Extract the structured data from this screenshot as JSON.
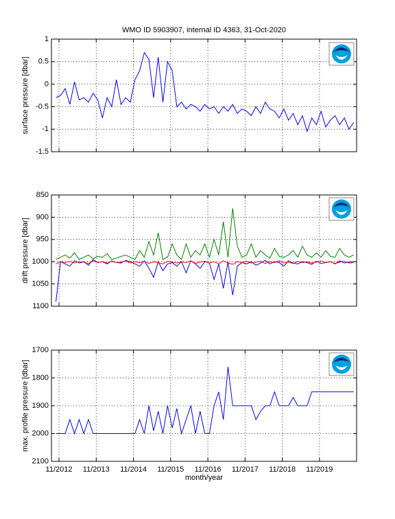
{
  "chart_data": [
    {
      "type": "line",
      "title": "WMO ID 5903907, internal ID 4363, 31-Oct-2020",
      "ylabel": "surface pressure [dbar]",
      "x": [
        2012.75,
        2012.875,
        2013,
        2013.125,
        2013.25,
        2013.375,
        2013.5,
        2013.625,
        2013.75,
        2013.875,
        2014,
        2014.125,
        2014.25,
        2014.375,
        2014.5,
        2014.625,
        2014.75,
        2014.875,
        2015,
        2015.125,
        2015.25,
        2015.375,
        2015.5,
        2015.625,
        2015.75,
        2015.875,
        2016,
        2016.125,
        2016.25,
        2016.375,
        2016.5,
        2016.625,
        2016.75,
        2016.875,
        2017,
        2017.125,
        2017.25,
        2017.375,
        2017.5,
        2017.625,
        2017.75,
        2017.875,
        2018,
        2018.125,
        2018.25,
        2018.375,
        2018.5,
        2018.625,
        2018.75,
        2018.875,
        2019,
        2019.125,
        2019.25,
        2019.375,
        2019.5,
        2019.625,
        2019.75,
        2019.875,
        2020,
        2020.125,
        2020.25,
        2020.375,
        2020.5,
        2020.625,
        2020.75
      ],
      "series": [
        {
          "color": "#0000ff",
          "values": [
            -0.3,
            -0.25,
            -0.1,
            -0.45,
            0.05,
            -0.35,
            -0.3,
            -0.4,
            -0.2,
            -0.35,
            -0.75,
            -0.3,
            -0.5,
            0.1,
            -0.45,
            -0.3,
            -0.4,
            0.1,
            0.3,
            0.7,
            0.55,
            -0.3,
            0.6,
            -0.4,
            0.5,
            0.3,
            -0.5,
            -0.4,
            -0.55,
            -0.45,
            -0.5,
            -0.6,
            -0.45,
            -0.55,
            -0.5,
            -0.65,
            -0.5,
            -0.6,
            -0.45,
            -0.65,
            -0.55,
            -0.6,
            -0.7,
            -0.5,
            -0.65,
            -0.4,
            -0.55,
            -0.6,
            -0.75,
            -0.55,
            -0.8,
            -0.65,
            -0.9,
            -0.7,
            -1.05,
            -0.75,
            -0.9,
            -0.6,
            -0.95,
            -0.8,
            -0.7,
            -0.9,
            -0.75,
            -1.0,
            -0.85
          ]
        }
      ],
      "xlim": [
        2012.63,
        2020.83
      ],
      "xticks": [
        2012.833,
        2013.833,
        2014.833,
        2015.833,
        2016.833,
        2017.833,
        2018.833,
        2019.833
      ],
      "ylim": [
        -1.5,
        1
      ],
      "yticks": [
        -1.5,
        -1,
        -0.5,
        0,
        0.5,
        1
      ],
      "y_reversed": false,
      "grid": true
    },
    {
      "type": "line",
      "ylabel": "drift pressure [dbar]",
      "x": [
        2012.75,
        2012.875,
        2013,
        2013.125,
        2013.25,
        2013.375,
        2013.5,
        2013.625,
        2013.75,
        2013.875,
        2014,
        2014.125,
        2014.25,
        2014.375,
        2014.5,
        2014.625,
        2014.75,
        2014.875,
        2015,
        2015.125,
        2015.25,
        2015.375,
        2015.5,
        2015.625,
        2015.75,
        2015.875,
        2016,
        2016.125,
        2016.25,
        2016.375,
        2016.5,
        2016.625,
        2016.75,
        2016.875,
        2017,
        2017.125,
        2017.25,
        2017.375,
        2017.5,
        2017.625,
        2017.75,
        2017.875,
        2018,
        2018.125,
        2018.25,
        2018.375,
        2018.5,
        2018.625,
        2018.75,
        2018.875,
        2019,
        2019.125,
        2019.25,
        2019.375,
        2019.5,
        2019.625,
        2019.75,
        2019.875,
        2020,
        2020.125,
        2020.25,
        2020.375,
        2020.5,
        2020.625,
        2020.75
      ],
      "series": [
        {
          "color": "#0000ff",
          "values": [
            1090,
            1000,
            1005,
            1010,
            998,
            1003,
            1000,
            1008,
            995,
            1002,
            1000,
            1005,
            998,
            1002,
            1003,
            997,
            1000,
            1005,
            1010,
            998,
            1015,
            1035,
            1000,
            1020,
            1005,
            1002,
            1010,
            1000,
            1025,
            998,
            1005,
            1015,
            1000,
            1003,
            1040,
            1005,
            1060,
            1000,
            1075,
            1010,
            1002,
            1005,
            1000,
            1008,
            1003,
            997,
            1005,
            1000,
            1002,
            1010,
            998,
            1003,
            1005,
            1000,
            1002,
            1006,
            999,
            1004,
            1002,
            1000,
            1005,
            998,
            1003,
            1001,
            1000
          ]
        },
        {
          "color": "#008000",
          "values": [
            995,
            990,
            985,
            992,
            980,
            995,
            990,
            985,
            993,
            988,
            990,
            982,
            995,
            992,
            988,
            985,
            990,
            995,
            975,
            990,
            955,
            985,
            935,
            995,
            990,
            960,
            985,
            995,
            960,
            990,
            975,
            985,
            960,
            990,
            950,
            985,
            910,
            990,
            880,
            965,
            990,
            985,
            960,
            990,
            975,
            985,
            992,
            970,
            988,
            990,
            985,
            975,
            990,
            965,
            985,
            990,
            980,
            990,
            975,
            988,
            990,
            970,
            985,
            990,
            985
          ]
        },
        {
          "color": "#ff0000",
          "values": [
            1005,
            1000,
            1002,
            999,
            1003,
            1000,
            1001,
            1004,
            998,
            1002,
            1000,
            1003,
            999,
            1002,
            1001,
            998,
            1003,
            1000,
            1002,
            999,
            1004,
            1000,
            1002,
            1005,
            999,
            1001,
            1003,
            1000,
            1002,
            998,
            1004,
            1001,
            999,
            1003,
            1000,
            1005,
            998,
            1003,
            1006,
            1000,
            1002,
            999,
            1003,
            1001,
            999,
            1004,
            1000,
            1002,
            998,
            1003,
            1001,
            1004,
            999,
            1002,
            1000,
            1003,
            1001,
            998,
            1002,
            1000,
            1004,
            1001,
            999,
            1003,
            1002
          ]
        }
      ],
      "xlim": [
        2012.63,
        2020.83
      ],
      "xticks": [
        2012.833,
        2013.833,
        2014.833,
        2015.833,
        2016.833,
        2017.833,
        2018.833,
        2019.833
      ],
      "ylim": [
        850,
        1100
      ],
      "yticks": [
        850,
        900,
        950,
        1000,
        1050,
        1100
      ],
      "y_reversed": true,
      "grid": true
    },
    {
      "type": "line",
      "ylabel": "max. profile pressure [dbar]",
      "xlabel": "month/year",
      "x": [
        2012.75,
        2012.875,
        2013,
        2013.125,
        2013.25,
        2013.375,
        2013.5,
        2013.625,
        2013.75,
        2013.875,
        2014,
        2014.125,
        2014.25,
        2014.375,
        2014.5,
        2014.625,
        2014.75,
        2014.875,
        2015,
        2015.125,
        2015.25,
        2015.375,
        2015.5,
        2015.625,
        2015.75,
        2015.875,
        2016,
        2016.125,
        2016.25,
        2016.375,
        2016.5,
        2016.625,
        2016.75,
        2016.875,
        2017,
        2017.125,
        2017.25,
        2017.375,
        2017.5,
        2017.625,
        2017.75,
        2017.875,
        2018,
        2018.125,
        2018.25,
        2018.375,
        2018.5,
        2018.625,
        2018.75,
        2018.875,
        2019,
        2019.125,
        2019.25,
        2019.375,
        2019.5,
        2019.625,
        2019.75,
        2019.875,
        2020,
        2020.125,
        2020.25,
        2020.375,
        2020.5,
        2020.625,
        2020.75
      ],
      "series": [
        {
          "color": "#0000ff",
          "values": [
            2000,
            2000,
            2000,
            1950,
            2000,
            1950,
            2000,
            1950,
            2000,
            2000,
            2000,
            2000,
            2000,
            2000,
            2000,
            2000,
            2000,
            2000,
            1950,
            2000,
            1900,
            1990,
            1920,
            2000,
            1900,
            1980,
            1910,
            2000,
            1950,
            1900,
            2000,
            1920,
            2000,
            2000,
            1900,
            1850,
            1950,
            1760,
            1900,
            1900,
            1900,
            1900,
            1900,
            1950,
            1920,
            1900,
            1900,
            1850,
            1900,
            1900,
            1900,
            1870,
            1900,
            1900,
            1900,
            1850,
            1850,
            1850,
            1850,
            1850,
            1850,
            1850,
            1850,
            1850,
            1850
          ]
        }
      ],
      "xlim": [
        2012.63,
        2020.83
      ],
      "xticks": [
        {
          "value": 2012.833,
          "label": "11/2012"
        },
        {
          "value": 2013.833,
          "label": "11/2013"
        },
        {
          "value": 2014.833,
          "label": "11/2014"
        },
        {
          "value": 2015.833,
          "label": "11/2015"
        },
        {
          "value": 2016.833,
          "label": "11/2016"
        },
        {
          "value": 2017.833,
          "label": "11/2017"
        },
        {
          "value": 2018.833,
          "label": "11/2018"
        },
        {
          "value": 2019.833,
          "label": "11/2019"
        }
      ],
      "ylim": [
        1700,
        2100
      ],
      "yticks": [
        1700,
        1800,
        1900,
        2000,
        2100
      ],
      "y_reversed": true,
      "grid": true
    }
  ]
}
